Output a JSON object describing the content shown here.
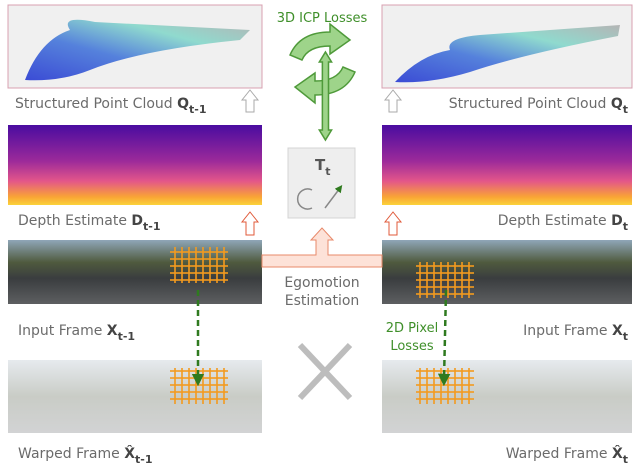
{
  "icp_label": "3D ICP Losses",
  "rows": [
    {
      "left": {
        "text": "Structured Point Cloud",
        "symbol": "Q",
        "subscript": "t-1"
      },
      "right": {
        "text": "Structured Point Cloud",
        "symbol": "Q",
        "subscript": "t"
      }
    },
    {
      "left": {
        "text": "Depth Estimate",
        "symbol": "D",
        "subscript": "t-1"
      },
      "right": {
        "text": "Depth Estimate",
        "symbol": "D",
        "subscript": "t"
      }
    },
    {
      "left": {
        "text": "Input Frame",
        "symbol": "X",
        "subscript": "t-1"
      },
      "right": {
        "text": "Input Frame",
        "symbol": "X",
        "subscript": "t"
      }
    },
    {
      "left": {
        "text": "Warped Frame",
        "symbol": "X̂",
        "subscript": "t-1"
      },
      "right": {
        "text": "Warped Frame",
        "symbol": "X̂",
        "subscript": "t"
      }
    }
  ],
  "transform": {
    "symbol": "T",
    "subscript": "t"
  },
  "egomotion": [
    "Egomotion",
    "Estimation"
  ],
  "pixel_label": [
    "2D Pixel",
    "Losses"
  ]
}
